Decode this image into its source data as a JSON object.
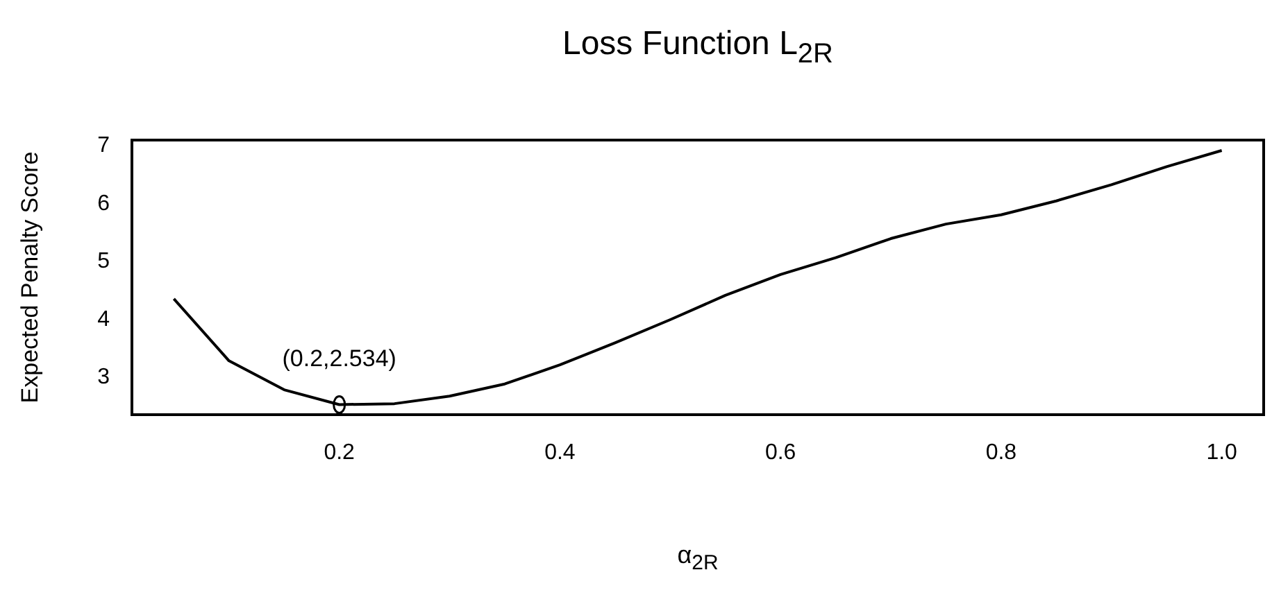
{
  "chart_data": {
    "type": "line",
    "title": "Loss Function L$_{2R}$",
    "xlabel": "α$_{2R}$",
    "ylabel": "Expected Penalty Score",
    "x": [
      0.05,
      0.1,
      0.15,
      0.2,
      0.25,
      0.3,
      0.35,
      0.4,
      0.45,
      0.5,
      0.55,
      0.6,
      0.65,
      0.7,
      0.75,
      0.8,
      0.85,
      0.9,
      0.95,
      1.0
    ],
    "series": [
      {
        "color": "#000000",
        "values": [
          4.36,
          3.29,
          2.79,
          2.534,
          2.55,
          2.68,
          2.89,
          3.22,
          3.6,
          4.0,
          4.42,
          4.78,
          5.07,
          5.4,
          5.65,
          5.81,
          6.05,
          6.33,
          6.64,
          6.92
        ]
      }
    ],
    "xlim": [
      0.012,
      1.038
    ],
    "ylim": [
      2.36,
      7.1
    ],
    "xticks": [
      0.2,
      0.4,
      0.6,
      0.8,
      {
        "value": 1.0,
        "label": "1.0"
      }
    ],
    "yticks": [
      3,
      4,
      5,
      6,
      7
    ],
    "annotations": [
      {
        "text": "(0.2,2.534)",
        "x": 0.2,
        "y": 2.534
      }
    ],
    "grid": false,
    "legend": false,
    "marker": "none",
    "line_style": "solid"
  }
}
